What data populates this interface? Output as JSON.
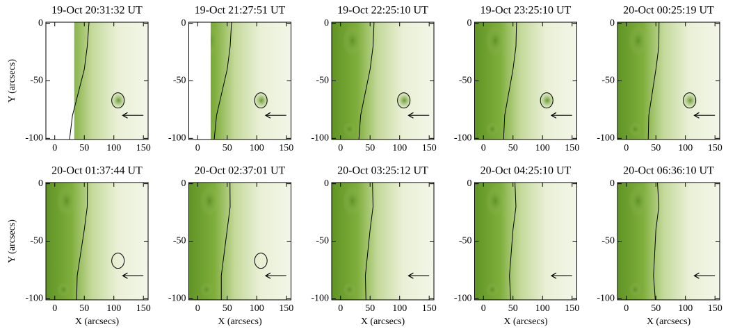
{
  "chart_data": [
    {
      "type": "image",
      "title": "19-Oct 20:31:32 UT",
      "xlim": [
        -15,
        158
      ],
      "ylim": [
        -101,
        1
      ],
      "xticks": [
        0,
        50,
        100,
        150
      ],
      "yticks": [
        0,
        -50,
        -100
      ],
      "y_label": "Y (arcsecs)"
    },
    {
      "type": "image",
      "title": "19-Oct 21:27:51 UT",
      "xlim": [
        -15,
        158
      ],
      "ylim": [
        -101,
        1
      ],
      "xticks": [
        0,
        50,
        100,
        150
      ],
      "yticks": [
        0,
        -50,
        -100
      ]
    },
    {
      "type": "image",
      "title": "19-Oct 22:25:10 UT",
      "xlim": [
        -15,
        158
      ],
      "ylim": [
        -101,
        1
      ],
      "xticks": [
        0,
        50,
        100,
        150
      ],
      "yticks": [
        0,
        -50,
        -100
      ]
    },
    {
      "type": "image",
      "title": "19-Oct 23:25:10 UT",
      "xlim": [
        -15,
        158
      ],
      "ylim": [
        -101,
        1
      ],
      "xticks": [
        0,
        50,
        100,
        150
      ],
      "yticks": [
        0,
        -50,
        -100
      ]
    },
    {
      "type": "image",
      "title": "20-Oct 00:25:19 UT",
      "xlim": [
        -15,
        158
      ],
      "ylim": [
        -101,
        1
      ],
      "xticks": [
        0,
        50,
        100,
        150
      ],
      "yticks": [
        0,
        -50,
        -100
      ]
    },
    {
      "type": "image",
      "title": "20-Oct 01:37:44 UT",
      "xlim": [
        -15,
        158
      ],
      "ylim": [
        -101,
        1
      ],
      "xticks": [
        0,
        50,
        100,
        150
      ],
      "yticks": [
        0,
        -50,
        -100
      ],
      "x_label": "X (arcsecs)",
      "y_label": "Y (arcsecs)"
    },
    {
      "type": "image",
      "title": "20-Oct 02:37:01 UT",
      "xlim": [
        -15,
        158
      ],
      "ylim": [
        -101,
        1
      ],
      "xticks": [
        0,
        50,
        100,
        150
      ],
      "yticks": [
        0,
        -50,
        -100
      ],
      "x_label": "X (arcsecs)"
    },
    {
      "type": "image",
      "title": "20-Oct 03:25:12 UT",
      "xlim": [
        -15,
        158
      ],
      "ylim": [
        -101,
        1
      ],
      "xticks": [
        0,
        50,
        100,
        150
      ],
      "yticks": [
        0,
        -50,
        -100
      ],
      "x_label": "X (arcsecs)"
    },
    {
      "type": "image",
      "title": "20-Oct 04:25:10 UT",
      "xlim": [
        -15,
        158
      ],
      "ylim": [
        -101,
        1
      ],
      "xticks": [
        0,
        50,
        100,
        150
      ],
      "yticks": [
        0,
        -50,
        -100
      ],
      "x_label": "X (arcsecs)"
    },
    {
      "type": "image",
      "title": "20-Oct 06:36:10 UT",
      "xlim": [
        -15,
        158
      ],
      "ylim": [
        -101,
        1
      ],
      "xticks": [
        0,
        50,
        100,
        150
      ],
      "yticks": [
        0,
        -50,
        -100
      ],
      "x_label": "X (arcsecs)"
    }
  ]
}
